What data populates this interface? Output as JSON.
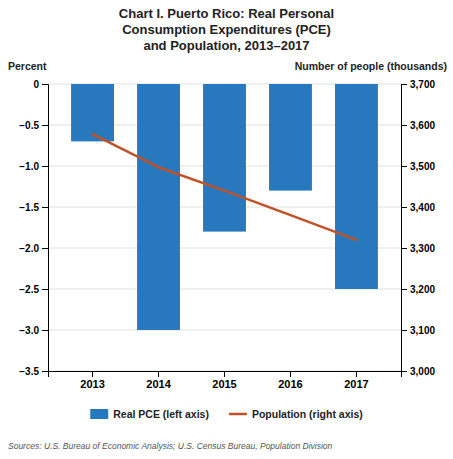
{
  "chart_data": {
    "type": "bar",
    "title": "Chart I. Puerto Rico: Real Personal\nConsumption Expenditures (PCE)\nand Population, 2013–2017",
    "categories": [
      "2013",
      "2014",
      "2015",
      "2016",
      "2017"
    ],
    "series": [
      {
        "name": "Real PCE (left axis)",
        "type": "bar",
        "color": "#2878BE",
        "values": [
          -0.7,
          -3.0,
          -1.8,
          -1.3,
          -2.5
        ]
      },
      {
        "name": "Population (right axis)",
        "type": "line",
        "axis": "y2",
        "color": "#C0522A",
        "values": [
          3578,
          3497,
          3440,
          3380,
          3320
        ]
      }
    ],
    "ylabel": "Percent",
    "y2label": "Number of people (thousands)",
    "ylim": [
      -3.5,
      0
    ],
    "yticks": [
      0,
      {
        "value": -0.5,
        "label": "−0.5"
      },
      {
        "value": -1.0,
        "label": "−1.0"
      },
      {
        "value": -1.5,
        "label": "−1.5"
      },
      {
        "value": -2.0,
        "label": "−2.0"
      },
      {
        "value": -2.5,
        "label": "−2.5"
      },
      {
        "value": -3.0,
        "label": "−3.0"
      },
      {
        "value": -3.5,
        "label": "−3.5"
      }
    ],
    "y2lim": [
      3000,
      3700
    ],
    "y2ticks": [
      {
        "value": 3700,
        "label": "3,700"
      },
      {
        "value": 3600,
        "label": "3,600"
      },
      {
        "value": 3500,
        "label": "3,500"
      },
      {
        "value": 3400,
        "label": "3,400"
      },
      {
        "value": 3300,
        "label": "3,300"
      },
      {
        "value": 3200,
        "label": "3,200"
      },
      {
        "value": 3100,
        "label": "3,100"
      },
      {
        "value": 3000,
        "label": "3,000"
      }
    ],
    "grid": true,
    "legend": "bottom",
    "source": "Sources: U.S. Bureau of Economic Analysis; U.S. Census Bureau, Population Division"
  }
}
